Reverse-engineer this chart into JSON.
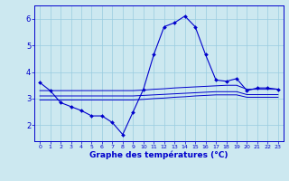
{
  "x": [
    0,
    1,
    2,
    3,
    4,
    5,
    6,
    7,
    8,
    9,
    10,
    11,
    12,
    13,
    14,
    15,
    16,
    17,
    18,
    19,
    20,
    21,
    22,
    23
  ],
  "line1": [
    3.6,
    3.3,
    2.85,
    2.7,
    2.55,
    2.35,
    2.35,
    2.1,
    1.65,
    2.5,
    3.35,
    4.65,
    5.7,
    5.85,
    6.1,
    5.7,
    4.65,
    3.7,
    3.65,
    3.75,
    3.3,
    3.4,
    3.4,
    3.35
  ],
  "line2": [
    3.3,
    3.3,
    3.3,
    3.3,
    3.3,
    3.3,
    3.3,
    3.3,
    3.3,
    3.3,
    3.32,
    3.35,
    3.37,
    3.4,
    3.42,
    3.44,
    3.46,
    3.48,
    3.5,
    3.5,
    3.35,
    3.35,
    3.35,
    3.35
  ],
  "line3": [
    3.1,
    3.1,
    3.1,
    3.1,
    3.1,
    3.1,
    3.1,
    3.1,
    3.1,
    3.1,
    3.12,
    3.14,
    3.16,
    3.18,
    3.2,
    3.22,
    3.24,
    3.26,
    3.26,
    3.26,
    3.15,
    3.15,
    3.15,
    3.15
  ],
  "line4": [
    2.95,
    2.95,
    2.95,
    2.95,
    2.95,
    2.95,
    2.95,
    2.95,
    2.95,
    2.95,
    2.97,
    3.0,
    3.02,
    3.05,
    3.07,
    3.1,
    3.12,
    3.14,
    3.14,
    3.14,
    3.05,
    3.05,
    3.05,
    3.05
  ],
  "line_color": "#0000cc",
  "bg_color": "#cce8f0",
  "grid_color": "#99cce0",
  "xlabel": "Graphe des températures (°C)",
  "xlim": [
    -0.5,
    23.5
  ],
  "ylim": [
    1.4,
    6.5
  ],
  "yticks": [
    2,
    3,
    4,
    5,
    6
  ],
  "xticks": [
    0,
    1,
    2,
    3,
    4,
    5,
    6,
    7,
    8,
    9,
    10,
    11,
    12,
    13,
    14,
    15,
    16,
    17,
    18,
    19,
    20,
    21,
    22,
    23
  ]
}
